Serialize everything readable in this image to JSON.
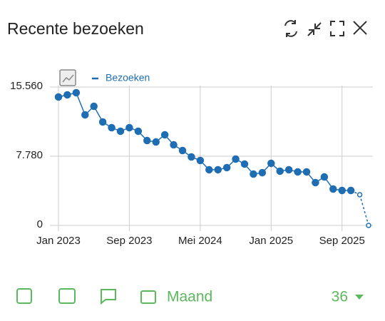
{
  "chart_data": {
    "type": "line",
    "title": "Recente bezoeken",
    "categories": [
      "Jan 2023",
      null,
      null,
      null,
      null,
      null,
      null,
      null,
      "Sep 2023",
      null,
      null,
      null,
      null,
      null,
      null,
      null,
      "Mei 2024",
      null,
      null,
      null,
      null,
      null,
      null,
      null,
      "Jan 2025",
      null,
      null,
      null,
      null,
      null,
      null,
      null,
      "Sep 2025",
      null,
      null,
      null
    ],
    "series": [
      {
        "name": "Bezoeken",
        "color": "#1f6db3",
        "values": [
          14440,
          14680,
          14920,
          12430,
          13390,
          11630,
          10990,
          10590,
          10990,
          10590,
          9540,
          9380,
          10190,
          9060,
          8420,
          7700,
          7300,
          6260,
          6260,
          6500,
          7460,
          6900,
          5770,
          5930,
          6980,
          6100,
          6260,
          6020,
          6020,
          4810,
          5450,
          4090,
          3930,
          3930,
          3450,
          0
        ]
      }
    ],
    "dashed_last": 2,
    "ylim": [
      0,
      15560
    ],
    "yticks": [
      0,
      {
        "value": 7780,
        "label": "7.780"
      },
      {
        "value": 15560,
        "label": "15.560"
      }
    ],
    "grid": true
  },
  "footer": {
    "period": "Maand",
    "count": "36"
  }
}
